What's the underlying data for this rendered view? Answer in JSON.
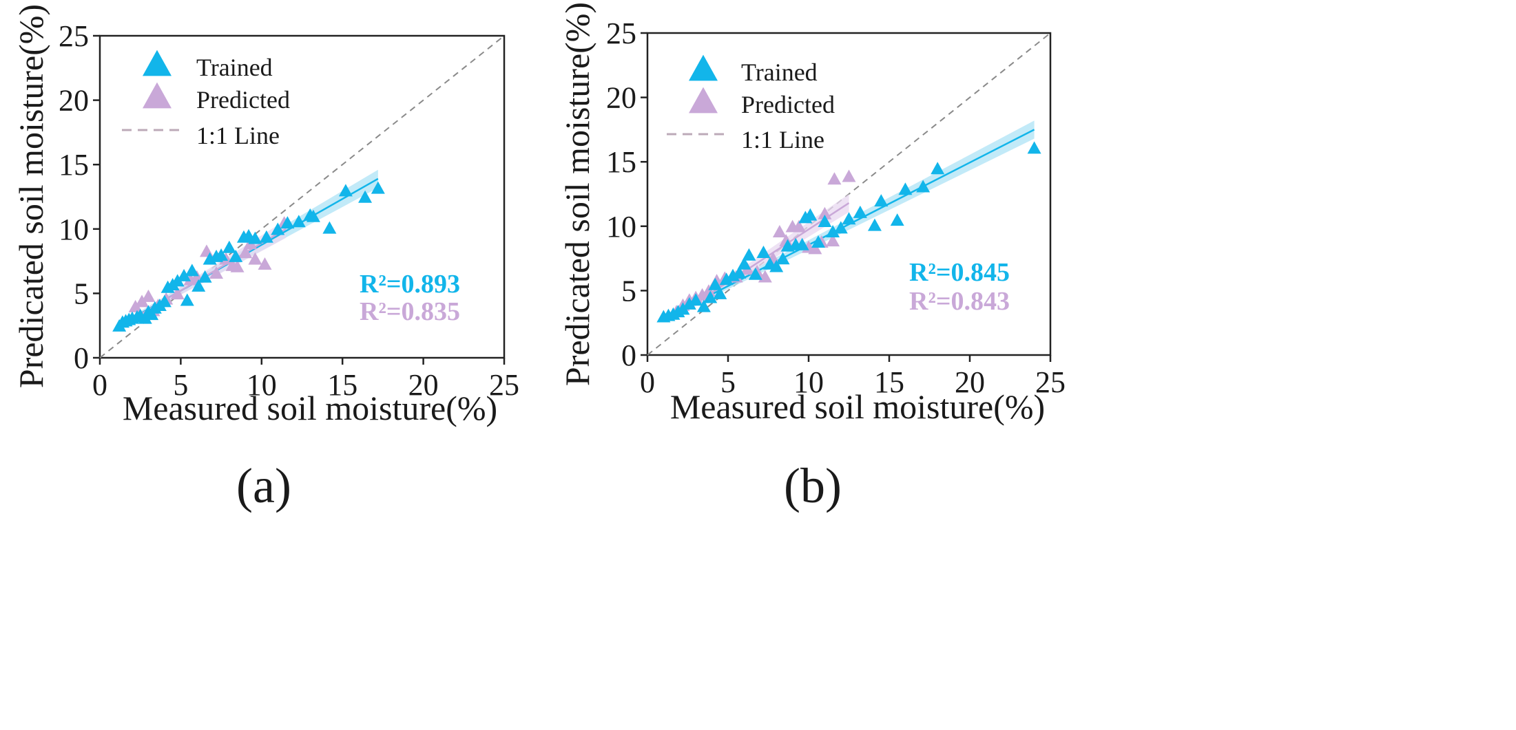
{
  "colors": {
    "trained": "#12b5ea",
    "predicted": "#c9a8d8",
    "trained_band": "#aee3f6",
    "predicted_band": "#e8d8f0",
    "one_to_one_line": "#8a8a8a",
    "legend_line": "#bcaab8",
    "axis": "#222222"
  },
  "chart_data": [
    {
      "type": "scatter",
      "panel_label": "(a)",
      "title": "",
      "xlabel": "Measured soil moisture(%)",
      "ylabel": "Predicated soil moisture(%)",
      "xlim": [
        0,
        25
      ],
      "ylim": [
        0,
        25
      ],
      "xticks": [
        "0",
        "5",
        "10",
        "15",
        "20",
        "25"
      ],
      "yticks": [
        "0",
        "5",
        "10",
        "15",
        "20",
        "25"
      ],
      "legend": {
        "placement": "top-left",
        "entries": [
          {
            "label": "Trained",
            "kind": "triangle",
            "series": "trained"
          },
          {
            "label": "Predicted",
            "kind": "triangle",
            "series": "predicted"
          },
          {
            "label": "1:1 Line",
            "kind": "dashed-line",
            "series": "one_to_one"
          }
        ]
      },
      "r2_labels": [
        {
          "text": "R²=0.893",
          "series": "trained"
        },
        {
          "text": "R²=0.835",
          "series": "predicted"
        }
      ],
      "series": [
        {
          "name": "Trained",
          "key": "trained",
          "points": [
            [
              1.2,
              2.4
            ],
            [
              1.4,
              2.7
            ],
            [
              1.6,
              2.8
            ],
            [
              1.8,
              2.9
            ],
            [
              2.0,
              3.0
            ],
            [
              2.3,
              3.1
            ],
            [
              2.5,
              3.2
            ],
            [
              2.8,
              3.0
            ],
            [
              3.0,
              3.5
            ],
            [
              3.2,
              3.3
            ],
            [
              3.4,
              3.8
            ],
            [
              3.7,
              4.0
            ],
            [
              4.0,
              4.3
            ],
            [
              4.2,
              5.4
            ],
            [
              4.5,
              5.6
            ],
            [
              4.8,
              5.9
            ],
            [
              5.2,
              6.3
            ],
            [
              5.4,
              4.4
            ],
            [
              5.7,
              6.7
            ],
            [
              6.1,
              5.5
            ],
            [
              6.5,
              6.2
            ],
            [
              6.8,
              7.6
            ],
            [
              7.2,
              7.8
            ],
            [
              7.5,
              7.9
            ],
            [
              8.0,
              8.5
            ],
            [
              8.4,
              7.8
            ],
            [
              8.9,
              9.3
            ],
            [
              9.2,
              9.4
            ],
            [
              9.6,
              9.2
            ],
            [
              10.3,
              9.3
            ],
            [
              11.0,
              9.9
            ],
            [
              11.6,
              10.4
            ],
            [
              12.3,
              10.5
            ],
            [
              13.0,
              11.0
            ],
            [
              13.2,
              10.9
            ],
            [
              14.2,
              10.0
            ],
            [
              15.2,
              12.9
            ],
            [
              16.4,
              12.4
            ],
            [
              17.2,
              13.1
            ]
          ],
          "fit_line": [
            [
              1.2,
              2.5
            ],
            [
              17.2,
              13.9
            ]
          ]
        },
        {
          "name": "Predicted",
          "key": "predicted",
          "points": [
            [
              2.2,
              3.9
            ],
            [
              2.6,
              4.3
            ],
            [
              3.0,
              4.7
            ],
            [
              3.3,
              3.6
            ],
            [
              3.6,
              4.0
            ],
            [
              4.1,
              4.5
            ],
            [
              4.8,
              4.9
            ],
            [
              5.6,
              6.0
            ],
            [
              6.0,
              6.2
            ],
            [
              6.6,
              8.2
            ],
            [
              7.2,
              6.5
            ],
            [
              7.8,
              7.6
            ],
            [
              8.2,
              7.1
            ],
            [
              8.5,
              7.0
            ],
            [
              9.0,
              8.1
            ],
            [
              9.3,
              8.8
            ],
            [
              9.6,
              7.6
            ],
            [
              10.2,
              7.2
            ],
            [
              11.4,
              10.4
            ]
          ],
          "fit_line": [
            [
              2.0,
              3.0
            ],
            [
              11.5,
              10.0
            ]
          ]
        }
      ]
    },
    {
      "type": "scatter",
      "panel_label": "(b)",
      "title": "",
      "xlabel": "Measured soil moisture(%)",
      "ylabel": "Predicated soil moisture(%)",
      "xlim": [
        0,
        25
      ],
      "ylim": [
        0,
        25
      ],
      "xticks": [
        "0",
        "5",
        "10",
        "15",
        "20",
        "25"
      ],
      "yticks": [
        "0",
        "5",
        "10",
        "15",
        "20",
        "25"
      ],
      "legend": {
        "placement": "top-left",
        "entries": [
          {
            "label": "Trained",
            "kind": "triangle",
            "series": "trained"
          },
          {
            "label": "Predicted",
            "kind": "triangle",
            "series": "predicted"
          },
          {
            "label": "1:1 Line",
            "kind": "dashed-line",
            "series": "one_to_one"
          }
        ]
      },
      "r2_labels": [
        {
          "text": "R²=0.845",
          "series": "trained"
        },
        {
          "text": "R²=0.843",
          "series": "predicted"
        }
      ],
      "series": [
        {
          "name": "Trained",
          "key": "trained",
          "points": [
            [
              1.0,
              2.9
            ],
            [
              1.3,
              3.0
            ],
            [
              1.6,
              3.1
            ],
            [
              1.9,
              3.3
            ],
            [
              2.2,
              3.5
            ],
            [
              2.6,
              3.9
            ],
            [
              3.0,
              4.2
            ],
            [
              3.5,
              3.7
            ],
            [
              3.9,
              4.4
            ],
            [
              4.2,
              5.4
            ],
            [
              4.5,
              4.7
            ],
            [
              4.9,
              5.8
            ],
            [
              5.3,
              6.1
            ],
            [
              5.7,
              6.3
            ],
            [
              6.0,
              7.0
            ],
            [
              6.3,
              7.7
            ],
            [
              6.7,
              6.2
            ],
            [
              7.2,
              7.9
            ],
            [
              7.6,
              7.0
            ],
            [
              8.0,
              6.8
            ],
            [
              8.4,
              7.4
            ],
            [
              8.7,
              8.4
            ],
            [
              9.2,
              8.5
            ],
            [
              9.6,
              8.5
            ],
            [
              9.8,
              10.6
            ],
            [
              10.1,
              10.8
            ],
            [
              10.6,
              8.7
            ],
            [
              11.0,
              10.3
            ],
            [
              11.5,
              9.5
            ],
            [
              12.0,
              9.8
            ],
            [
              12.5,
              10.5
            ],
            [
              13.2,
              11.0
            ],
            [
              14.1,
              10.0
            ],
            [
              14.5,
              11.9
            ],
            [
              15.5,
              10.4
            ],
            [
              16.0,
              12.8
            ],
            [
              17.1,
              13.0
            ],
            [
              18.0,
              14.4
            ],
            [
              24.0,
              16.0
            ]
          ],
          "fit_line": [
            [
              1.0,
              2.8
            ],
            [
              24.0,
              17.5
            ]
          ]
        },
        {
          "name": "Predicted",
          "key": "predicted",
          "points": [
            [
              1.8,
              3.3
            ],
            [
              2.2,
              3.8
            ],
            [
              2.6,
              4.2
            ],
            [
              3.0,
              4.4
            ],
            [
              3.4,
              4.6
            ],
            [
              3.8,
              4.9
            ],
            [
              4.3,
              5.7
            ],
            [
              4.8,
              5.9
            ],
            [
              5.5,
              6.0
            ],
            [
              6.2,
              6.6
            ],
            [
              6.8,
              6.4
            ],
            [
              7.3,
              6.0
            ],
            [
              7.8,
              7.4
            ],
            [
              8.2,
              9.5
            ],
            [
              8.6,
              8.8
            ],
            [
              9.0,
              9.9
            ],
            [
              9.4,
              9.9
            ],
            [
              10.0,
              8.3
            ],
            [
              10.4,
              8.2
            ],
            [
              10.8,
              8.7
            ],
            [
              11.0,
              10.9
            ],
            [
              11.5,
              8.8
            ],
            [
              11.6,
              13.6
            ],
            [
              12.5,
              13.8
            ]
          ],
          "fit_line": [
            [
              1.5,
              2.8
            ],
            [
              12.5,
              11.8
            ]
          ]
        }
      ]
    }
  ]
}
